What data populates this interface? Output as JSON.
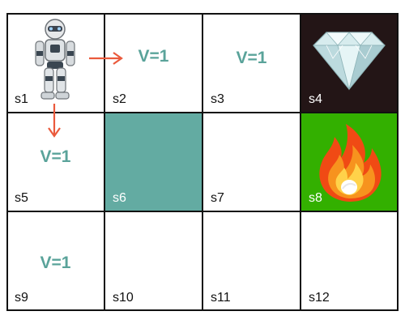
{
  "colors": {
    "border": "#111111",
    "value_text": "#5aa39a",
    "teal_cell": "#63aba2",
    "dark_cell": "#231516",
    "green_cell": "#33b000",
    "arrow": "#ea5a3c"
  },
  "cells": [
    {
      "label": "s1",
      "icon": "robot-icon"
    },
    {
      "label": "s2",
      "value": "V=1"
    },
    {
      "label": "s3",
      "value": "V=1"
    },
    {
      "label": "s4",
      "icon": "diamond-icon"
    },
    {
      "label": "s5",
      "value": "V=1"
    },
    {
      "label": "s6"
    },
    {
      "label": "s7"
    },
    {
      "label": "s8",
      "icon": "fire-icon"
    },
    {
      "label": "s9",
      "value": "V=1"
    },
    {
      "label": "s10"
    },
    {
      "label": "s11"
    },
    {
      "label": "s12"
    }
  ],
  "arrows": [
    {
      "from": "s1",
      "to": "s2",
      "icon": "arrow-right-icon"
    },
    {
      "from": "s1",
      "to": "s5",
      "icon": "arrow-down-icon"
    }
  ]
}
